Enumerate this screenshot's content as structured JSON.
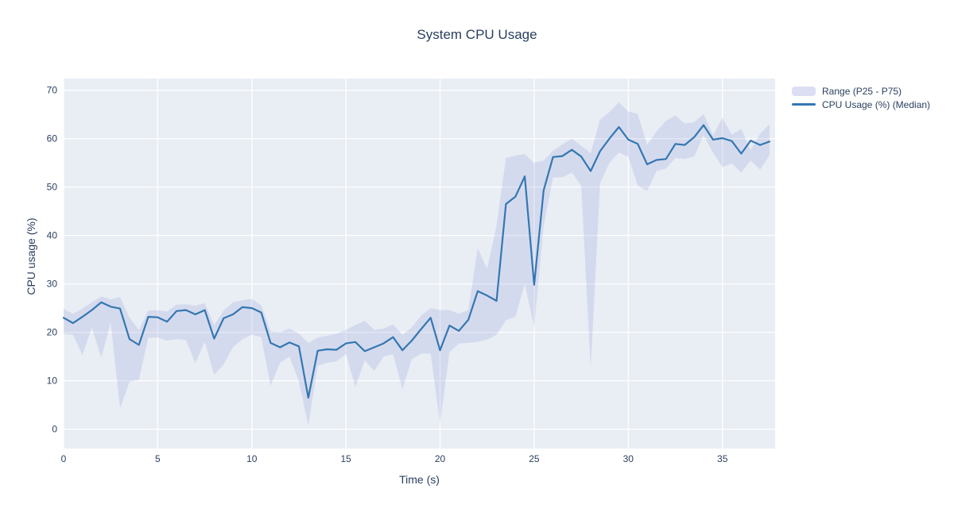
{
  "title": "System CPU Usage",
  "axes": {
    "x_label": "Time (s)",
    "y_label": "CPU usage (%)",
    "x_ticks": [
      0,
      5,
      10,
      15,
      20,
      25,
      30,
      35
    ],
    "y_ticks": [
      0,
      10,
      20,
      30,
      40,
      50,
      60,
      70
    ]
  },
  "legend": {
    "items": [
      {
        "label": "Range (P25 - P75)",
        "swatch": "band-swatch"
      },
      {
        "label": "CPU Usage (%) (Median)",
        "swatch": "line-swatch"
      }
    ]
  },
  "colors": {
    "line": "#3477b2",
    "band_fill": "rgba(164,174,221,0.30)",
    "band_legend": "#dcdff4",
    "plot_bg": "#e9edf4",
    "grid": "#ffffff",
    "text": "#2a3f5f",
    "paper": "#ffffff"
  },
  "chart_data": {
    "type": "line",
    "title": "System CPU Usage",
    "xlabel": "Time (s)",
    "ylabel": "CPU usage (%)",
    "x_range": [
      0,
      37.8
    ],
    "y_range": [
      -4.0,
      72.4
    ],
    "grid": "on",
    "legend_position": "top-right-outside",
    "x": [
      0,
      0.5,
      1,
      1.5,
      2,
      2.5,
      3,
      3.5,
      4,
      4.5,
      5,
      5.5,
      6,
      6.5,
      7,
      7.5,
      8,
      8.5,
      9,
      9.5,
      10,
      10.5,
      11,
      11.5,
      12,
      12.5,
      13,
      13.5,
      14,
      14.5,
      15,
      15.5,
      16,
      16.5,
      17,
      17.5,
      18,
      18.5,
      19,
      19.5,
      20,
      20.5,
      21,
      21.5,
      22,
      22.5,
      23,
      23.5,
      24,
      24.5,
      25,
      25.5,
      26,
      26.5,
      27,
      27.5,
      28,
      28.5,
      29,
      29.5,
      30,
      30.5,
      31,
      31.5,
      32,
      32.5,
      33,
      33.5,
      34,
      34.5,
      35,
      35.5,
      36,
      36.5,
      37,
      37.5
    ],
    "series": [
      {
        "name": "CPU Usage (%) (Median)",
        "values": [
          23.0,
          21.9,
          23.2,
          24.6,
          26.2,
          25.3,
          24.9,
          18.6,
          17.4,
          23.2,
          23.1,
          22.2,
          24.4,
          24.6,
          23.7,
          24.6,
          18.7,
          22.9,
          23.7,
          25.2,
          25.0,
          24.1,
          17.8,
          16.9,
          17.9,
          17.1,
          6.5,
          16.2,
          16.5,
          16.4,
          17.7,
          18.0,
          16.1,
          16.9,
          17.7,
          19.0,
          16.3,
          18.3,
          20.7,
          23.0,
          16.3,
          21.4,
          20.3,
          22.6,
          28.5,
          27.6,
          26.5,
          46.5,
          48.0,
          52.2,
          29.8,
          49.3,
          56.2,
          56.4,
          57.7,
          56.3,
          53.3,
          57.4,
          60.0,
          62.4,
          59.8,
          58.9,
          54.7,
          55.6,
          55.8,
          58.9,
          58.7,
          60.3,
          62.8,
          59.8,
          60.1,
          59.5,
          56.9,
          59.6,
          58.7,
          59.4
        ]
      },
      {
        "name": "P75",
        "values": [
          24.9,
          23.8,
          24.9,
          26.2,
          27.4,
          26.8,
          27.3,
          23.0,
          20.5,
          24.5,
          24.6,
          24.3,
          25.7,
          25.8,
          25.5,
          26.0,
          21.5,
          24.5,
          26.2,
          26.6,
          26.9,
          25.6,
          20.2,
          20.0,
          20.8,
          19.7,
          17.8,
          18.9,
          19.3,
          19.7,
          20.5,
          21.5,
          22.4,
          20.5,
          20.8,
          21.6,
          19.5,
          21.0,
          23.5,
          25.0,
          24.6,
          24.6,
          23.8,
          24.6,
          37.4,
          33.1,
          42.0,
          56.0,
          56.5,
          56.8,
          55.0,
          55.5,
          57.5,
          58.8,
          60.0,
          58.5,
          57.0,
          63.9,
          65.5,
          67.5,
          65.6,
          65.1,
          58.7,
          61.5,
          63.7,
          64.8,
          63.1,
          63.4,
          65.1,
          60.7,
          64.3,
          60.8,
          62.0,
          57.7,
          61.0,
          63.0
        ]
      },
      {
        "name": "P25",
        "values": [
          19.7,
          19.5,
          15.3,
          21.0,
          14.8,
          22.0,
          4.3,
          9.8,
          10.2,
          18.9,
          18.9,
          18.3,
          18.6,
          18.4,
          13.7,
          18.0,
          11.2,
          13.4,
          16.9,
          18.6,
          19.5,
          19.0,
          9.0,
          13.7,
          15.0,
          9.8,
          0.8,
          13.1,
          13.7,
          14.0,
          15.5,
          8.7,
          14.2,
          12.0,
          15.0,
          15.5,
          8.2,
          14.5,
          15.6,
          15.6,
          1.1,
          15.9,
          17.7,
          17.8,
          18.0,
          18.5,
          19.5,
          22.5,
          23.2,
          30.0,
          21.0,
          42.0,
          52.0,
          52.0,
          53.0,
          50.3,
          12.5,
          50.8,
          55.0,
          57.1,
          56.3,
          50.3,
          49.2,
          53.3,
          53.8,
          56.0,
          55.8,
          56.3,
          60.7,
          57.1,
          54.1,
          54.9,
          53.0,
          55.5,
          53.6,
          56.6
        ]
      }
    ],
    "band": {
      "name": "Range (P25 - P75)",
      "upper": "P75",
      "lower": "P25"
    }
  }
}
